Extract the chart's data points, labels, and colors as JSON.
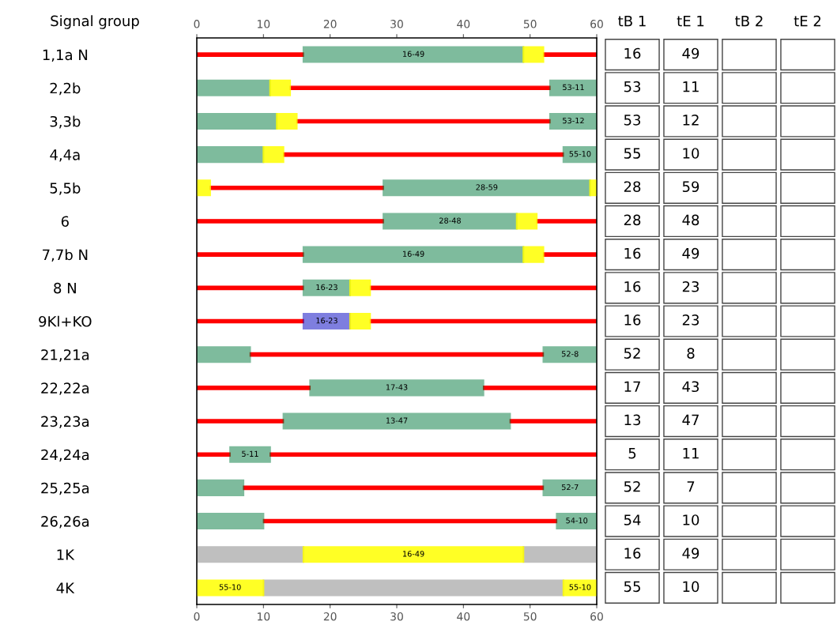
{
  "chart_data": [
    {
      "type": "bar",
      "orientation": "horizontal",
      "ylabel": "Signal group",
      "categories": [
        "1,1a N",
        "2,2b",
        "3,3b",
        "4,4a",
        "5,5b",
        "6",
        "7,7b N",
        "8 N",
        "9Kl+KO",
        "21,21a",
        "22,22a",
        "23,23a",
        "24,24a",
        "25,25a",
        "26,26a",
        "1K",
        "4K"
      ],
      "xlim": [
        0,
        60
      ],
      "xticks": [
        0,
        10,
        20,
        30,
        40,
        50,
        60
      ],
      "x2lim": [
        0,
        60
      ],
      "x2ticks": [
        0,
        10,
        20,
        30,
        40,
        50,
        60
      ],
      "series": [
        {
          "type": "bar",
          "line_style": "solid",
          "color": "#ff0000",
          "base": [
            52,
            14,
            15,
            13,
            2,
            51,
            52,
            26,
            26,
            8,
            43,
            47,
            11,
            7,
            10,
            null,
            null
          ],
          "values": [
            8,
            39,
            38,
            42,
            26,
            9,
            8,
            34,
            34,
            44,
            17,
            13,
            49,
            45,
            44,
            null,
            null
          ]
        },
        {
          "type": "bar",
          "line_style": "solid",
          "color": "#ff0000",
          "base": [
            0,
            null,
            null,
            null,
            null,
            0,
            0,
            0,
            0,
            null,
            0,
            0,
            0,
            null,
            null,
            null,
            null
          ],
          "values": [
            16,
            null,
            null,
            null,
            null,
            28,
            16,
            16,
            16,
            null,
            17,
            13,
            5,
            null,
            null,
            null,
            null
          ]
        },
        {
          "type": "bar",
          "color": "#808080",
          "base": [
            null,
            null,
            null,
            null,
            null,
            null,
            null,
            null,
            null,
            null,
            null,
            null,
            null,
            null,
            null,
            0,
            10
          ],
          "values": [
            null,
            null,
            null,
            null,
            null,
            null,
            null,
            null,
            null,
            null,
            null,
            null,
            null,
            null,
            null,
            16,
            45
          ]
        },
        {
          "type": "bar",
          "color": "#808080",
          "base": [
            null,
            null,
            null,
            null,
            null,
            null,
            null,
            null,
            null,
            null,
            null,
            null,
            null,
            null,
            null,
            49,
            null
          ],
          "values": [
            null,
            null,
            null,
            null,
            null,
            null,
            null,
            null,
            null,
            null,
            null,
            null,
            null,
            null,
            null,
            11,
            null
          ]
        },
        {
          "type": "bar",
          "color": "#007a3d",
          "colors": [
            "#007a3d",
            "#007a3d",
            "#007a3d",
            "#007a3d",
            "#007a3d",
            "#007a3d",
            "#007a3d",
            "#007a3d",
            "#0000c0",
            "#007a3d",
            "#007a3d",
            "#007a3d",
            "#007a3d",
            "#007a3d",
            "#007a3d",
            "#007a3d",
            "#007a3d"
          ],
          "base": [
            16,
            53,
            53,
            55,
            28,
            28,
            16,
            16,
            16,
            52,
            17,
            13,
            5,
            52,
            54,
            null,
            null
          ],
          "values": [
            33,
            7,
            7,
            5,
            31,
            20,
            33,
            7,
            7,
            8,
            26,
            34,
            6,
            8,
            6,
            null,
            null
          ],
          "value_labels": [
            "16-49",
            "53-11",
            "53-12",
            "55-10",
            "28-59",
            "28-48",
            "16-49",
            "16-23",
            "16-23",
            "52-8",
            "17-43",
            "13-47",
            "5-11",
            "52-7",
            "54-10",
            null,
            null
          ]
        },
        {
          "type": "bar",
          "color": "#007a3d",
          "base": [
            null,
            0,
            0,
            0,
            null,
            null,
            null,
            null,
            null,
            0,
            null,
            null,
            null,
            0,
            0,
            null,
            null
          ],
          "values": [
            null,
            11,
            12,
            10,
            null,
            null,
            null,
            null,
            null,
            8,
            null,
            null,
            null,
            7,
            10,
            null,
            null
          ]
        },
        {
          "type": "bar",
          "color": "#ffff00",
          "base": [
            49,
            11,
            12,
            10,
            59,
            48,
            49,
            23,
            23,
            null,
            null,
            null,
            null,
            null,
            null,
            16,
            55
          ],
          "values": [
            3,
            3,
            3,
            3,
            1,
            3,
            3,
            3,
            3,
            null,
            null,
            null,
            null,
            null,
            null,
            33,
            5
          ],
          "value_labels": [
            null,
            null,
            null,
            null,
            null,
            null,
            null,
            null,
            null,
            null,
            null,
            null,
            null,
            null,
            null,
            "16-49",
            "55-10"
          ]
        },
        {
          "type": "bar",
          "color": "#ffff00",
          "base": [
            null,
            null,
            null,
            null,
            0,
            null,
            null,
            null,
            null,
            null,
            null,
            null,
            null,
            null,
            null,
            null,
            0
          ],
          "values": [
            null,
            null,
            null,
            null,
            2,
            null,
            null,
            null,
            null,
            null,
            null,
            null,
            null,
            null,
            null,
            null,
            10
          ],
          "value_labels": [
            null,
            null,
            null,
            null,
            null,
            null,
            null,
            null,
            null,
            null,
            null,
            null,
            null,
            null,
            null,
            null,
            "55-10"
          ]
        }
      ]
    },
    {
      "type": "other",
      "categories": [
        "tB 1",
        "tE 1",
        "tB 2",
        "tE 2"
      ],
      "cell_labels": [
        [
          "16",
          "49",
          null,
          null
        ],
        [
          "53",
          "11",
          null,
          null
        ],
        [
          "53",
          "12",
          null,
          null
        ],
        [
          "55",
          "10",
          null,
          null
        ],
        [
          "28",
          "59",
          null,
          null
        ],
        [
          "28",
          "48",
          null,
          null
        ],
        [
          "16",
          "49",
          null,
          null
        ],
        [
          "16",
          "23",
          null,
          null
        ],
        [
          "16",
          "23",
          null,
          null
        ],
        [
          "52",
          "8",
          null,
          null
        ],
        [
          "17",
          "43",
          null,
          null
        ],
        [
          "13",
          "47",
          null,
          null
        ],
        [
          "5",
          "11",
          null,
          null
        ],
        [
          "52",
          "7",
          null,
          null
        ],
        [
          "54",
          "10",
          null,
          null
        ],
        [
          "16",
          "49",
          null,
          null
        ],
        [
          "55",
          "10",
          null,
          null
        ]
      ]
    }
  ]
}
